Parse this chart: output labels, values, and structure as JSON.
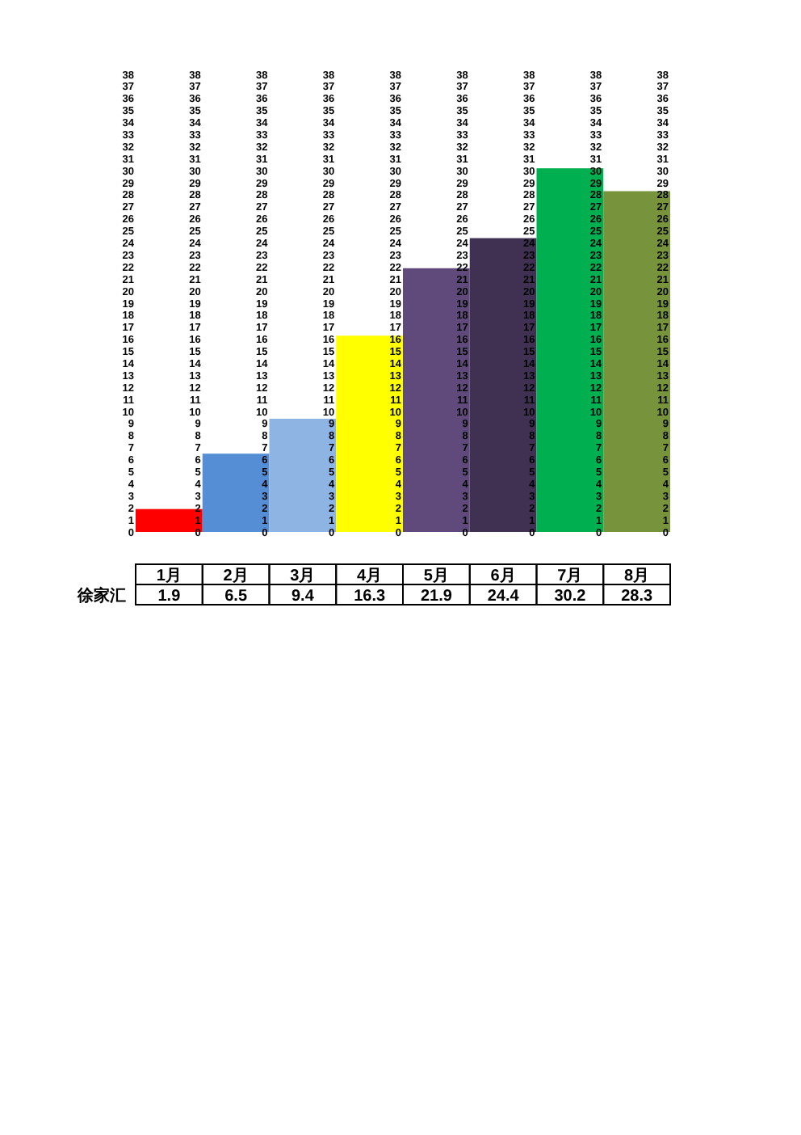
{
  "chart_data": [
    {
      "type": "bar",
      "categories": [
        "1月",
        "2月"
      ],
      "series": [
        {
          "name": "徐家汇",
          "values": [
            1.9,
            6.5
          ],
          "colors": [
            "#ff0000",
            "#558ed5"
          ]
        }
      ],
      "ylim": [
        0,
        38
      ],
      "yticks": [
        0,
        1,
        2,
        3,
        4,
        5,
        6,
        7,
        8,
        9,
        10,
        11,
        12,
        13,
        14,
        15,
        16,
        17,
        18,
        19,
        20,
        21,
        22,
        23,
        24,
        25,
        26,
        27,
        28,
        29,
        30,
        31,
        32,
        33,
        34,
        35,
        36,
        37,
        38
      ],
      "y3lim": [
        0,
        38
      ],
      "y3ticks": [
        0,
        1,
        2,
        3,
        4,
        5,
        6,
        7,
        8,
        9,
        10,
        11,
        12,
        13,
        14,
        15,
        16,
        17,
        18,
        19,
        20,
        21,
        22,
        23,
        24,
        25,
        26,
        27,
        28,
        29,
        30,
        31,
        32,
        33,
        34,
        35,
        36,
        37,
        38
      ],
      "data_labels": true
    },
    {
      "type": "bar",
      "categories": [
        "3月",
        "4月"
      ],
      "series": [
        {
          "values": [
            9.4,
            16.3
          ],
          "colors": [
            "#8eb4e3",
            "#ffff00"
          ]
        }
      ],
      "ylim": [
        0,
        38
      ],
      "yticks": [
        0,
        1,
        2,
        3,
        4,
        5,
        6,
        7,
        8,
        9,
        10,
        11,
        12,
        13,
        14,
        15,
        16,
        17,
        18,
        19,
        20,
        21,
        22,
        23,
        24,
        25,
        26,
        27,
        28,
        29,
        30,
        31,
        32,
        33,
        34,
        35,
        36,
        37,
        38
      ],
      "y3lim": [
        0,
        38
      ],
      "y3ticks": [
        0,
        1,
        2,
        3,
        4,
        5,
        6,
        7,
        8,
        9,
        10,
        11,
        12,
        13,
        14,
        15,
        16,
        17,
        18,
        19,
        20,
        21,
        22,
        23,
        24,
        25,
        26,
        27,
        28,
        29,
        30,
        31,
        32,
        33,
        34,
        35,
        36,
        37,
        38
      ],
      "data_labels": true
    },
    {
      "type": "bar",
      "categories": [
        "5月",
        "6月"
      ],
      "series": [
        {
          "values": [
            21.9,
            24.4
          ],
          "colors": [
            "#604a7b",
            "#403152"
          ]
        }
      ],
      "ylim": [
        0,
        38
      ],
      "yticks": [
        0,
        1,
        2,
        3,
        4,
        5,
        6,
        7,
        8,
        9,
        10,
        11,
        12,
        13,
        14,
        15,
        16,
        17,
        18,
        19,
        20,
        21,
        22,
        23,
        24,
        25,
        26,
        27,
        28,
        29,
        30,
        31,
        32,
        33,
        34,
        35,
        36,
        37,
        38
      ],
      "y3lim": [
        0,
        38
      ],
      "y3ticks": [
        0,
        1,
        2,
        3,
        4,
        5,
        6,
        7,
        8,
        9,
        10,
        11,
        12,
        13,
        14,
        15,
        16,
        17,
        18,
        19,
        20,
        21,
        22,
        23,
        24,
        25,
        26,
        27,
        28,
        29,
        30,
        31,
        32,
        33,
        34,
        35,
        36,
        37,
        38
      ],
      "data_labels": true
    },
    {
      "type": "bar",
      "categories": [
        "7月",
        "8月"
      ],
      "series": [
        {
          "values": [
            30.2,
            28.3
          ],
          "colors": [
            "#00b050",
            "#77933c"
          ]
        }
      ],
      "ylim": [
        0,
        38
      ],
      "yticks": [
        0,
        1,
        2,
        3,
        4,
        5,
        6,
        7,
        8,
        9,
        10,
        11,
        12,
        13,
        14,
        15,
        16,
        17,
        18,
        19,
        20,
        21,
        22,
        23,
        24,
        25,
        26,
        27,
        28,
        29,
        30,
        31,
        32,
        33,
        34,
        35,
        36,
        37,
        38
      ],
      "y3lim": [
        0,
        38
      ],
      "y3ticks": [
        0,
        1,
        2,
        3,
        4,
        5,
        6,
        7,
        8,
        9,
        10,
        11,
        12,
        13,
        14,
        15,
        16,
        17,
        18,
        19,
        20,
        21,
        22,
        23,
        24,
        25,
        26,
        27,
        28,
        29,
        30,
        31,
        32,
        33,
        34,
        35,
        36,
        37,
        38
      ],
      "y2lim": [
        0,
        38
      ],
      "y2ticks": [
        0,
        1,
        2,
        3,
        4,
        5,
        6,
        7,
        8,
        9,
        10,
        11,
        12,
        13,
        14,
        15,
        16,
        17,
        18,
        19,
        20,
        21,
        22,
        23,
        24,
        25,
        26,
        27,
        28,
        29,
        30,
        31,
        32,
        33,
        34,
        35,
        36,
        37,
        38
      ],
      "data_labels": true
    }
  ]
}
